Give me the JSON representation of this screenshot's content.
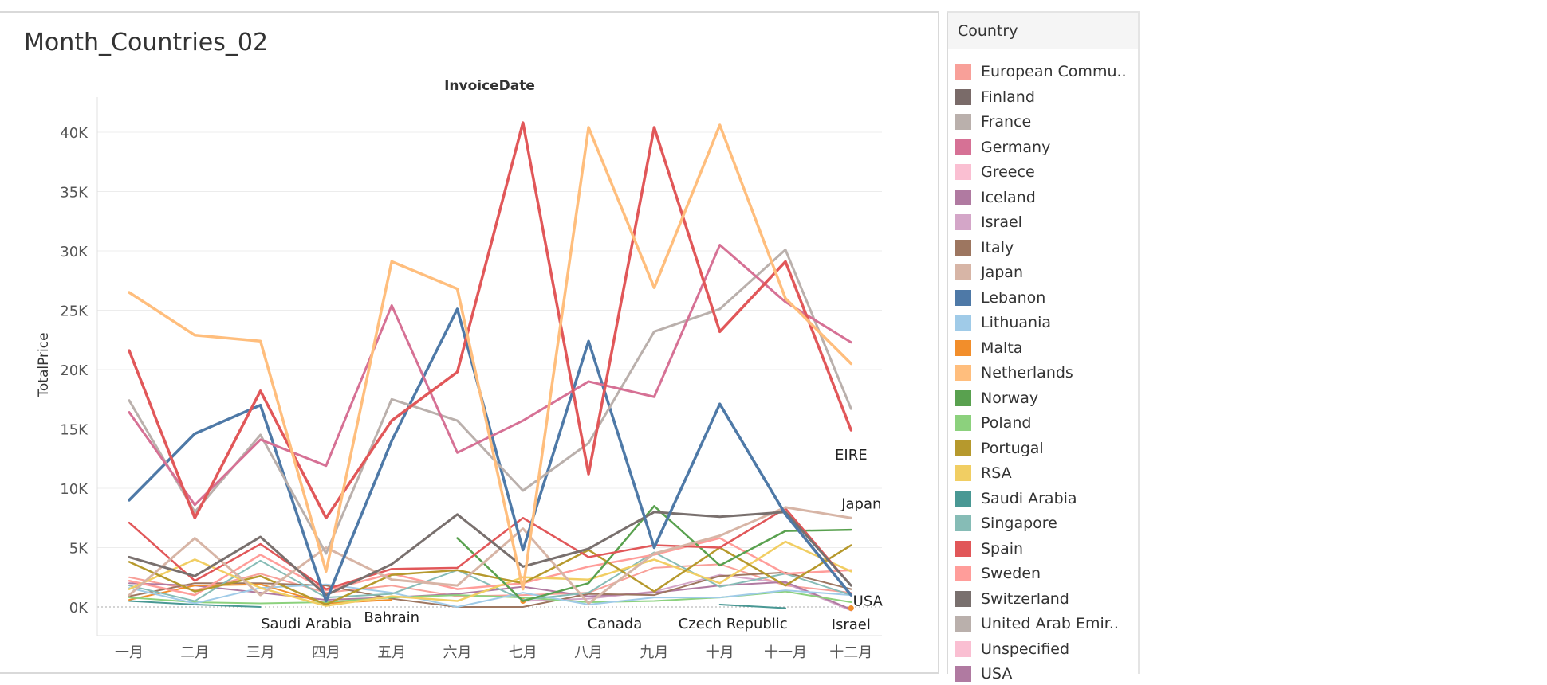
{
  "title": "Month_Countries_02",
  "legend_title": "Country",
  "legend": [
    {
      "label": "European Commu..",
      "color": "#f8a099"
    },
    {
      "label": "Finland",
      "color": "#7a6b69"
    },
    {
      "label": "France",
      "color": "#bab0ac"
    },
    {
      "label": "Germany",
      "color": "#d67195"
    },
    {
      "label": "Greece",
      "color": "#fabfd2"
    },
    {
      "label": "Iceland",
      "color": "#b07aa1"
    },
    {
      "label": "Israel",
      "color": "#d4a6c8"
    },
    {
      "label": "Italy",
      "color": "#9d7660"
    },
    {
      "label": "Japan",
      "color": "#d7b5a6"
    },
    {
      "label": "Lebanon",
      "color": "#4e79a7"
    },
    {
      "label": "Lithuania",
      "color": "#a0cbe8"
    },
    {
      "label": "Malta",
      "color": "#f28e2b"
    },
    {
      "label": "Netherlands",
      "color": "#ffbe7d"
    },
    {
      "label": "Norway",
      "color": "#59a14f"
    },
    {
      "label": "Poland",
      "color": "#8cd17d"
    },
    {
      "label": "Portugal",
      "color": "#b6992d"
    },
    {
      "label": "RSA",
      "color": "#f1ce63"
    },
    {
      "label": "Saudi Arabia",
      "color": "#499894"
    },
    {
      "label": "Singapore",
      "color": "#86bcb6"
    },
    {
      "label": "Spain",
      "color": "#e15759"
    },
    {
      "label": "Sweden",
      "color": "#ff9d9a"
    },
    {
      "label": "Switzerland",
      "color": "#79706e"
    },
    {
      "label": "United Arab Emir..",
      "color": "#bab0ac"
    },
    {
      "label": "Unspecified",
      "color": "#fabfd2"
    },
    {
      "label": "USA",
      "color": "#b07aa1"
    }
  ],
  "chart_data": {
    "type": "line",
    "title": "Month_Countries_02",
    "xlabel": "InvoiceDate",
    "ylabel": "TotalPrice",
    "categories": [
      "一月",
      "二月",
      "三月",
      "四月",
      "五月",
      "六月",
      "七月",
      "八月",
      "九月",
      "十月",
      "十一月",
      "十二月"
    ],
    "ylim": [
      -2000,
      43000
    ],
    "yticks": [
      0,
      5000,
      10000,
      15000,
      20000,
      25000,
      30000,
      35000,
      40000
    ],
    "ytick_labels": [
      "0K",
      "5K",
      "10K",
      "15K",
      "20K",
      "25K",
      "30K",
      "35K",
      "40K"
    ],
    "grid": true,
    "series": [
      {
        "color": "#ffbe7d",
        "width": 3.5,
        "values": [
          26500,
          22900,
          22400,
          3000,
          29100,
          26800,
          1500,
          40400,
          26900,
          40600,
          26000,
          20500
        ]
      },
      {
        "color": "#e15759",
        "width": 3.5,
        "values": [
          21600,
          7500,
          18200,
          7500,
          15700,
          19800,
          40800,
          11200,
          40400,
          23200,
          29100,
          14900
        ]
      },
      {
        "color": "#d67195",
        "width": 3,
        "values": [
          16400,
          8600,
          14100,
          11900,
          25400,
          13000,
          15700,
          19000,
          17700,
          30500,
          25700,
          22300
        ]
      },
      {
        "color": "#bab0ac",
        "width": 3,
        "values": [
          17400,
          8000,
          14500,
          4500,
          17500,
          15700,
          9800,
          13800,
          23200,
          25100,
          30100,
          16700
        ]
      },
      {
        "color": "#4e79a7",
        "width": 3.5,
        "values": [
          9000,
          14600,
          17000,
          500,
          14000,
          25100,
          4800,
          22400,
          5000,
          17100,
          7800,
          1000
        ]
      },
      {
        "color": "#79706e",
        "width": 3,
        "values": [
          4200,
          2600,
          5900,
          1000,
          3600,
          7800,
          3400,
          4900,
          8000,
          7600,
          8000,
          1800
        ]
      },
      {
        "color": "#d7b5a6",
        "width": 3,
        "values": [
          1000,
          5800,
          1000,
          5000,
          2300,
          1800,
          6600,
          300,
          4500,
          6000,
          8400,
          7500
        ]
      },
      {
        "color": "#e15759",
        "width": 2.5,
        "values": [
          7100,
          2200,
          5300,
          1500,
          3200,
          3300,
          7500,
          4200,
          5200,
          5000,
          8300,
          1800
        ]
      },
      {
        "color": "#59a14f",
        "width": 2.5,
        "values": [
          null,
          null,
          null,
          null,
          null,
          5800,
          500,
          2000,
          8500,
          3500,
          6400,
          6500
        ]
      },
      {
        "color": "#b6992d",
        "width": 2.5,
        "values": [
          3800,
          1300,
          2600,
          200,
          2700,
          3100,
          2000,
          4800,
          1300,
          5000,
          1800,
          5200
        ]
      },
      {
        "color": "#f1ce63",
        "width": 2.5,
        "values": [
          1500,
          4000,
          1600,
          100,
          900,
          500,
          2500,
          2300,
          4000,
          2000,
          5500,
          3000
        ]
      },
      {
        "color": "#ff9d9a",
        "width": 2.5,
        "values": [
          2200,
          1000,
          4400,
          1400,
          2800,
          1500,
          2000,
          3400,
          4400,
          5800,
          2800,
          3100
        ]
      },
      {
        "color": "#86bcb6",
        "width": 2,
        "values": [
          1800,
          500,
          3900,
          800,
          1100,
          3100,
          600,
          1200,
          4600,
          1700,
          2800,
          1000
        ]
      },
      {
        "color": "#a0cbe8",
        "width": 2,
        "values": [
          1600,
          300,
          1600,
          1900,
          1200,
          0,
          1200,
          200,
          800,
          800,
          1400,
          1000
        ]
      },
      {
        "color": "#8cd17d",
        "width": 2,
        "values": [
          800,
          400,
          300,
          400,
          800,
          1000,
          800,
          400,
          500,
          800,
          1300,
          400
        ]
      },
      {
        "color": "#f28e2b",
        "width": 2,
        "values": [
          600,
          1800,
          1900,
          300,
          600,
          null,
          500,
          null,
          null,
          null,
          null,
          -100
        ]
      },
      {
        "color": "#499894",
        "width": 2,
        "values": [
          500,
          200,
          0,
          null,
          null,
          null,
          null,
          null,
          null,
          200,
          -100,
          null
        ]
      },
      {
        "color": "#9d7660",
        "width": 2,
        "values": [
          900,
          2000,
          2000,
          1800,
          700,
          0,
          0,
          1100,
          1000,
          2600,
          2900,
          1500
        ]
      },
      {
        "color": "#b07aa1",
        "width": 2,
        "values": [
          2000,
          1800,
          1200,
          600,
          800,
          1100,
          1700,
          900,
          1200,
          1800,
          2100,
          -200
        ]
      },
      {
        "color": "#d4a6c8",
        "width": 2,
        "values": [
          null,
          null,
          null,
          null,
          null,
          null,
          500,
          700,
          1300,
          2700,
          2000,
          -300
        ]
      },
      {
        "color": "#f8a099",
        "width": 2,
        "values": [
          2500,
          1400,
          2800,
          1200,
          1800,
          900,
          1000,
          1200,
          3300,
          3600,
          1800,
          1200
        ]
      }
    ],
    "annotations": [
      {
        "text": "EIRE",
        "x": 11,
        "y": 14900
      },
      {
        "text": "Japan",
        "x": 11,
        "y": 7500
      },
      {
        "text": "USA",
        "x": 11,
        "y": 500
      },
      {
        "text": "Saudi Arabia",
        "x": 2.7,
        "y": 0
      },
      {
        "text": "Bahrain",
        "x": 4,
        "y": 0
      },
      {
        "text": "Canada",
        "x": 7.4,
        "y": 0
      },
      {
        "text": "Czech Republic",
        "x": 9.2,
        "y": 0
      },
      {
        "text": "Israel",
        "x": 11,
        "y": -300
      }
    ]
  }
}
